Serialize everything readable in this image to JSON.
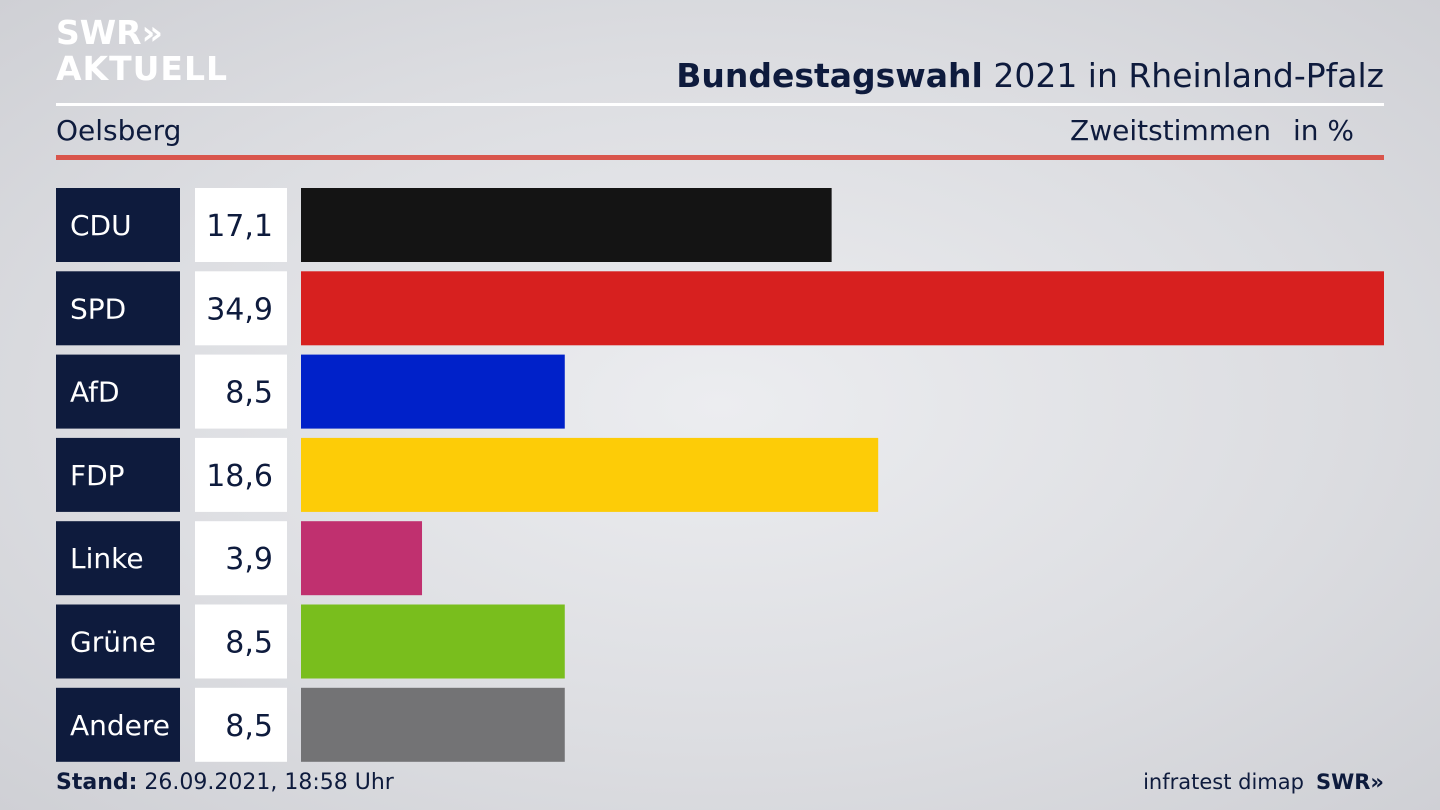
{
  "brand": {
    "logo_line1": "SWR»",
    "logo_line2": "AKTUELL",
    "footer_logo": "SWR»"
  },
  "header": {
    "title_bold": "Bundestagswahl",
    "title_rest": " 2021 in Rheinland-Pfalz",
    "location": "Oelsberg",
    "vote_type": "Zweitstimmen",
    "unit": "in %"
  },
  "footer": {
    "stand_label": "Stand:",
    "stand_value": " 26.09.2021, 18:58 Uhr",
    "source": "infratest dimap"
  },
  "chart_data": {
    "type": "bar",
    "orientation": "horizontal",
    "categories": [
      "CDU",
      "SPD",
      "AfD",
      "FDP",
      "Linke",
      "Grüne",
      "Andere"
    ],
    "values": [
      17.1,
      34.9,
      8.5,
      18.6,
      3.9,
      8.5,
      8.5
    ],
    "value_labels": [
      "17,1",
      "34,9",
      "8,5",
      "18,6",
      "3,9",
      "8,5",
      "8,5"
    ],
    "colors": [
      "#141414",
      "#d7201f",
      "#0021c9",
      "#fdcc07",
      "#c0306f",
      "#79be1d",
      "#737375"
    ],
    "xlim": [
      0,
      34.9
    ],
    "grid": false,
    "legend": "none"
  },
  "colors": {
    "label_bg": "#0e1b3d",
    "value_bg": "#ffffff",
    "accent_rule": "#d9554c"
  }
}
